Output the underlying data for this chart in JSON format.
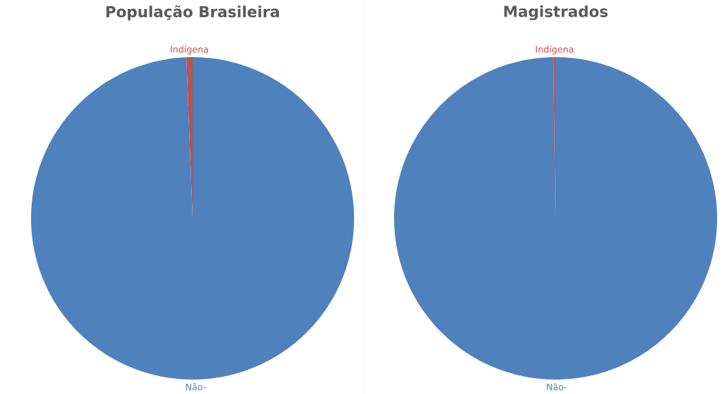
{
  "chart_data": [
    {
      "type": "pie",
      "title": "População Brasileira",
      "categories": [
        "Não-",
        "Indígena"
      ],
      "values": [
        99.4,
        0.6
      ],
      "colors": [
        "#4f81bd",
        "#c0504d"
      ]
    },
    {
      "type": "pie",
      "title": "Magistrados",
      "categories": [
        "Não-",
        "Indígena"
      ],
      "values": [
        99.8,
        0.2
      ],
      "colors": [
        "#4f81bd",
        "#c0504d"
      ]
    }
  ]
}
